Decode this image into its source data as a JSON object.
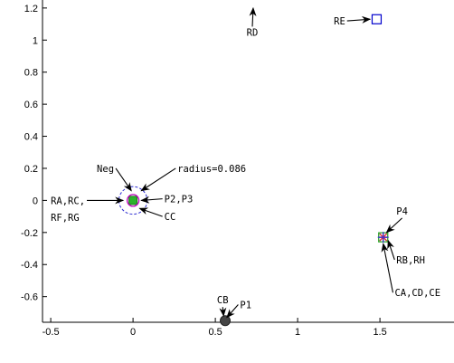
{
  "chart_data": {
    "type": "scatter",
    "title": "",
    "xlabel": "",
    "ylabel": "",
    "xlim": [
      -0.55,
      1.95
    ],
    "ylim": [
      -0.76,
      1.25
    ],
    "grid": false,
    "x_ticks": [
      -0.5,
      0,
      0.5,
      1,
      1.5
    ],
    "x_tick_labels": [
      "-0.5",
      "0",
      "0.5",
      "1",
      "1.5"
    ],
    "y_ticks": [
      -0.6,
      -0.4,
      -0.2,
      0,
      0.2,
      0.4,
      0.6,
      0.8,
      1,
      1.2
    ],
    "y_tick_labels": [
      "-0.6",
      "-0.4",
      "-0.2",
      "0",
      "0.2",
      "0.4",
      "0.6",
      "0.8",
      "1",
      "1.2"
    ],
    "points": [
      {
        "x": 0,
        "y": 0,
        "marker": "filled-square",
        "color": "#2db32d"
      },
      {
        "x": 0,
        "y": 0,
        "marker": "open-circle",
        "color": "#c000c0"
      },
      {
        "x": 1.52,
        "y": -0.23,
        "marker": "asterisk",
        "color": "#e03030"
      },
      {
        "x": 1.52,
        "y": -0.23,
        "marker": "open-square",
        "color": "#20a020"
      },
      {
        "x": 1.52,
        "y": -0.23,
        "marker": "plus",
        "color": "#3030e0"
      },
      {
        "x": 1.48,
        "y": 1.13,
        "marker": "open-square",
        "color": "#0000cc"
      },
      {
        "x": 0.56,
        "y": -0.75,
        "marker": "filled-circle",
        "color": "#444444"
      }
    ],
    "circle": {
      "x": 0,
      "y": 0,
      "radius": 0.086,
      "color": "#2a2ad0",
      "style": "dashed"
    },
    "annotations": [
      {
        "text": "Neg",
        "tx": -0.22,
        "ty": 0.2,
        "ax": -0.01,
        "ay": 0.06
      },
      {
        "text": "radius=0.086",
        "tx": 0.27,
        "ty": 0.2,
        "ax": 0.05,
        "ay": 0.06
      },
      {
        "text": "RA,RC,",
        "tx": -0.5,
        "ty": 0,
        "ax": -0.06,
        "ay": 0
      },
      {
        "text": "RF,RG",
        "tx": -0.5,
        "ty": -0.105
      },
      {
        "text": "P2,P3",
        "tx": 0.19,
        "ty": 0.01,
        "ax": 0.05,
        "ay": 0
      },
      {
        "text": "CC",
        "tx": 0.19,
        "ty": -0.1,
        "ax": 0.04,
        "ay": -0.05
      },
      {
        "text": "P4",
        "tx": 1.6,
        "ty": -0.065,
        "ax": 1.54,
        "ay": -0.2
      },
      {
        "text": "RB,RH",
        "tx": 1.6,
        "ty": -0.37,
        "ax": 1.55,
        "ay": -0.25
      },
      {
        "text": "CA,CD,CE",
        "tx": 1.59,
        "ty": -0.575,
        "ax": 1.52,
        "ay": -0.27
      },
      {
        "text": "RD",
        "tx": 0.69,
        "ty": 1.05,
        "ax": 0.73,
        "ay": 1.2
      },
      {
        "text": "RE",
        "tx": 1.22,
        "ty": 1.12,
        "ax": 1.44,
        "ay": 1.13
      },
      {
        "text": "CB",
        "tx": 0.51,
        "ty": -0.62,
        "ax": 0.55,
        "ay": -0.72
      },
      {
        "text": "P1",
        "tx": 0.65,
        "ty": -0.65,
        "ax": 0.57,
        "ay": -0.73
      }
    ]
  }
}
